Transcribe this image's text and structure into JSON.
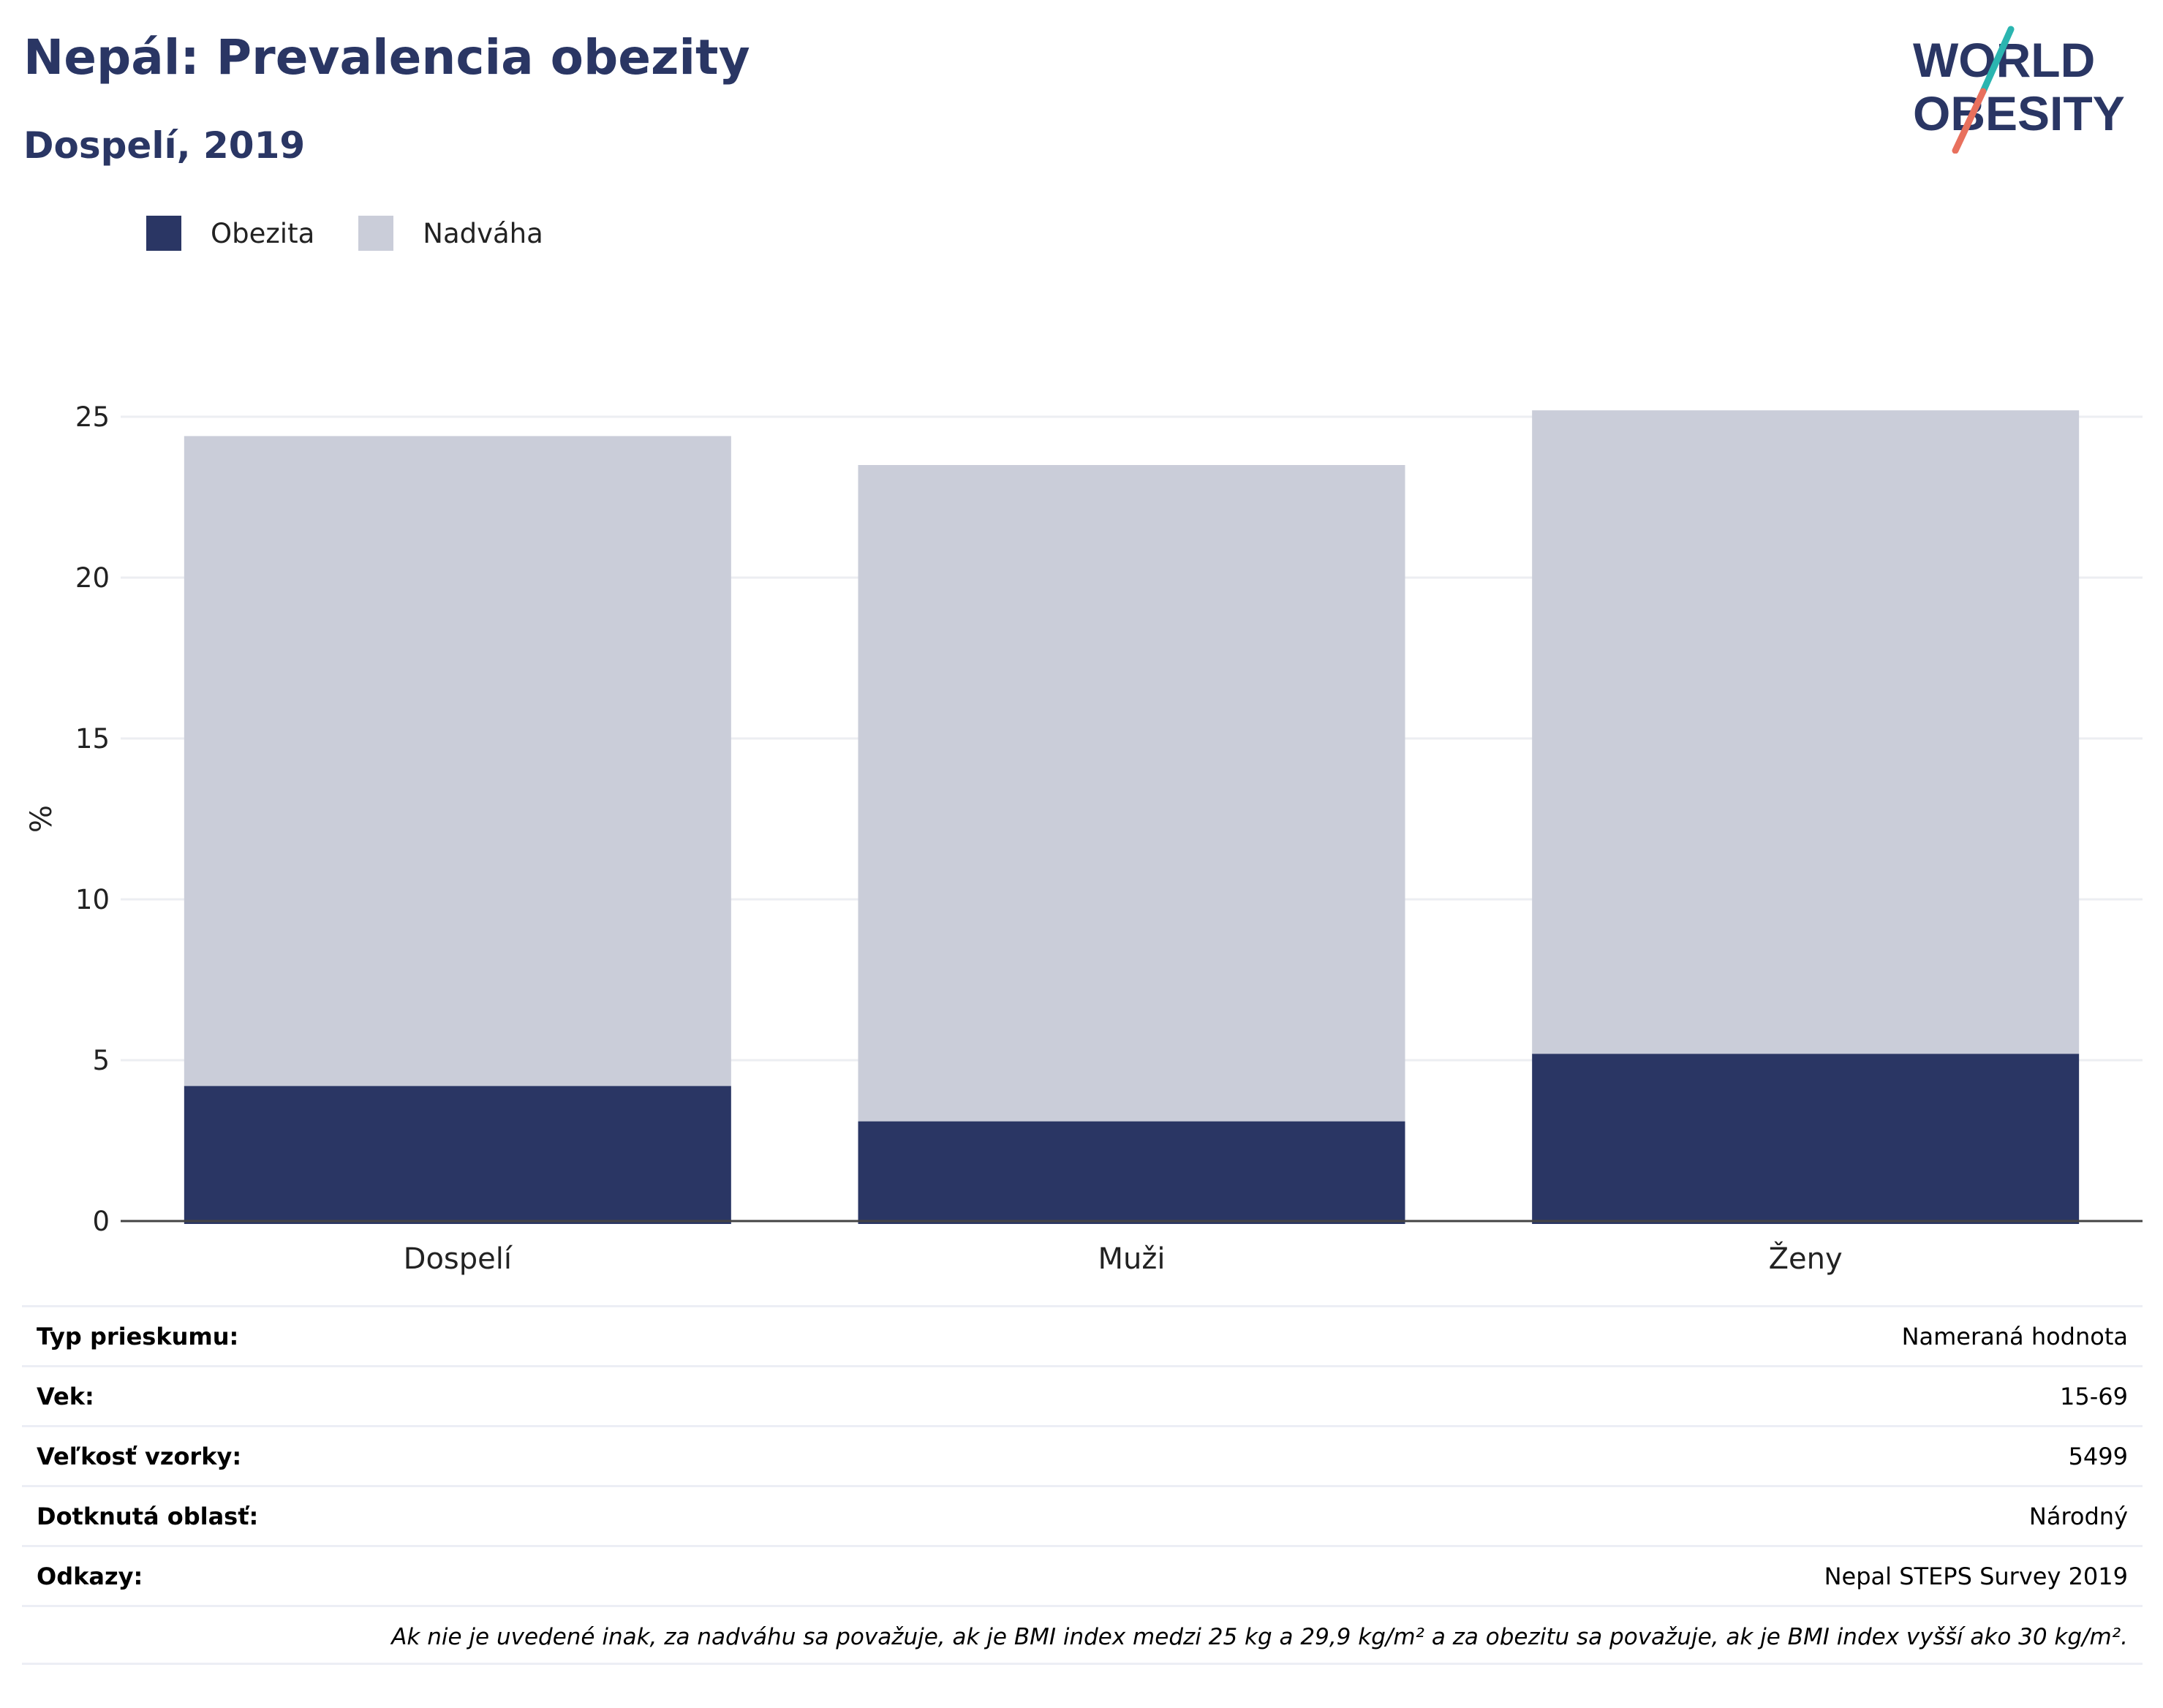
{
  "header": {
    "title": "Nepál: Prevalencia obezity",
    "subtitle": "Dospelí, 2019",
    "logo_line1": "WORLD",
    "logo_line2": "OBESITY"
  },
  "colors": {
    "obesity": "#2a3664",
    "overweight": "#cacdd9",
    "title": "#2a3664"
  },
  "legend": [
    {
      "label": "Obezita",
      "color": "#2a3664"
    },
    {
      "label": "Nadváha",
      "color": "#cacdd9"
    }
  ],
  "chart_data": {
    "type": "bar",
    "stacked": true,
    "categories": [
      "Dospelí",
      "Muži",
      "Ženy"
    ],
    "series": [
      {
        "name": "Obezita",
        "values": [
          4.2,
          3.1,
          5.2
        ]
      },
      {
        "name": "Nadváha",
        "values": [
          20.2,
          20.4,
          20.0
        ]
      }
    ],
    "ylabel": "%",
    "ylim": [
      0,
      25
    ],
    "yticks": [
      "0",
      "5",
      "10",
      "15",
      "20",
      "25"
    ],
    "grid": true,
    "legend_position": "top-left"
  },
  "info_table": [
    {
      "key": "Typ prieskumu:",
      "value": "Nameraná hodnota"
    },
    {
      "key": "Vek:",
      "value": "15-69"
    },
    {
      "key": "Veľkosť vzorky:",
      "value": "5499"
    },
    {
      "key": "Dotknutá oblasť:",
      "value": "Národný"
    },
    {
      "key": "Odkazy:",
      "value": "Nepal STEPS Survey 2019"
    }
  ],
  "footnote": "Ak nie je uvedené inak, za nadváhu sa považuje, ak je BMI index medzi 25 kg a 29,9 kg/m² a za obezitu sa považuje, ak je BMI index vyšší ako 30 kg/m²."
}
